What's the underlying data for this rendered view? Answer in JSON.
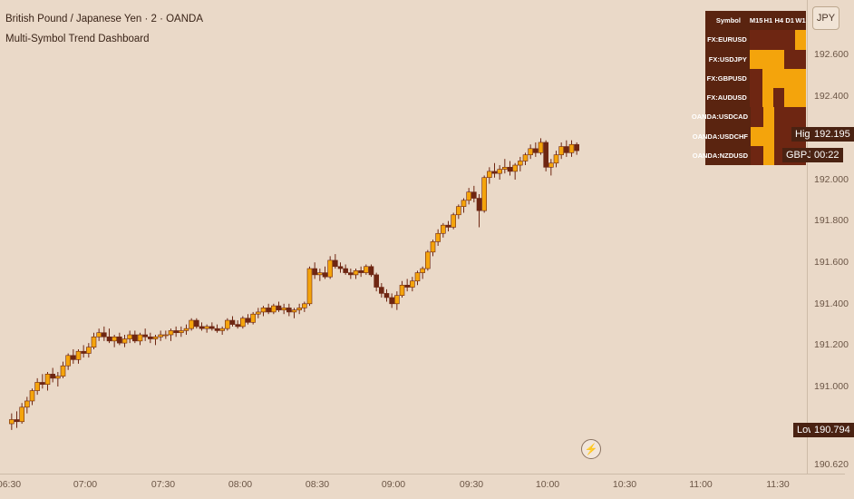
{
  "header": {
    "title": "British Pound / Japanese Yen · 2 · OANDA",
    "indicator": "Multi-Symbol Trend Dashboard"
  },
  "currency": "JPY",
  "price_axis": {
    "ticks": [
      "192.600",
      "192.400",
      "192.000",
      "191.800",
      "191.600",
      "191.400",
      "191.200",
      "191.000",
      "190.620"
    ]
  },
  "time_axis": {
    "ticks": [
      "06:30",
      "07:00",
      "07:30",
      "08:00",
      "08:30",
      "09:00",
      "09:30",
      "10:00",
      "10:30",
      "11:00",
      "11:30"
    ]
  },
  "labels": {
    "high_label": "High",
    "high_value": "192.195",
    "symbol_label": "GBPJPY",
    "timer": "00:22",
    "low_label": "Low",
    "low_value": "190.794"
  },
  "dashboard": {
    "header_symbol": "Symbol",
    "timeframes": [
      "M15",
      "H1",
      "H4",
      "D1",
      "W1"
    ],
    "rows": [
      {
        "symbol": "FX:EURUSD",
        "states": [
          "down",
          "down",
          "down",
          "down",
          "up"
        ]
      },
      {
        "symbol": "FX:USDJPY",
        "states": [
          "up",
          "up",
          "up",
          "down",
          "down"
        ]
      },
      {
        "symbol": "FX:GBPUSD",
        "states": [
          "down",
          "up",
          "up",
          "up",
          "up"
        ]
      },
      {
        "symbol": "FX:AUDUSD",
        "states": [
          "down",
          "up",
          "down",
          "up",
          "up"
        ]
      },
      {
        "symbol": "OANDA:USDCAD",
        "states": [
          "down",
          "up",
          "down",
          "down",
          "down"
        ]
      },
      {
        "symbol": "OANDA:USDCHF",
        "states": [
          "up",
          "up",
          "down",
          "down",
          "down"
        ]
      },
      {
        "symbol": "OANDA:NZDUSD",
        "states": [
          "down",
          "up",
          "down",
          "down",
          "down"
        ]
      }
    ]
  },
  "colors": {
    "background": "#ead9c8",
    "bull": "#f4a40c",
    "bear": "#6e2612",
    "wick": "#6e2612",
    "dashboard_bg": "#5a2410"
  },
  "chart_data": {
    "type": "candlestick",
    "symbol": "GBPJPY",
    "ylim": [
      190.6,
      192.78
    ],
    "x_range": [
      "06:30",
      "11:50"
    ],
    "ohlc": [
      {
        "t": "06:31",
        "o": 190.82,
        "h": 190.87,
        "l": 190.79,
        "c": 190.84
      },
      {
        "t": "06:33",
        "o": 190.84,
        "h": 190.88,
        "l": 190.8,
        "c": 190.83
      },
      {
        "t": "06:35",
        "o": 190.83,
        "h": 190.92,
        "l": 190.82,
        "c": 190.9
      },
      {
        "t": "06:37",
        "o": 190.9,
        "h": 190.95,
        "l": 190.87,
        "c": 190.93
      },
      {
        "t": "06:39",
        "o": 190.93,
        "h": 190.99,
        "l": 190.91,
        "c": 190.98
      },
      {
        "t": "06:41",
        "o": 190.98,
        "h": 191.04,
        "l": 190.96,
        "c": 191.02
      },
      {
        "t": "06:43",
        "o": 191.02,
        "h": 191.06,
        "l": 190.99,
        "c": 191.01
      },
      {
        "t": "06:45",
        "o": 191.01,
        "h": 191.07,
        "l": 190.98,
        "c": 191.06
      },
      {
        "t": "06:47",
        "o": 191.06,
        "h": 191.09,
        "l": 191.02,
        "c": 191.04
      },
      {
        "t": "06:49",
        "o": 191.04,
        "h": 191.07,
        "l": 191.0,
        "c": 191.05
      },
      {
        "t": "06:51",
        "o": 191.05,
        "h": 191.12,
        "l": 191.04,
        "c": 191.1
      },
      {
        "t": "06:53",
        "o": 191.1,
        "h": 191.16,
        "l": 191.08,
        "c": 191.15
      },
      {
        "t": "06:55",
        "o": 191.15,
        "h": 191.18,
        "l": 191.11,
        "c": 191.13
      },
      {
        "t": "06:57",
        "o": 191.13,
        "h": 191.18,
        "l": 191.11,
        "c": 191.17
      },
      {
        "t": "06:59",
        "o": 191.17,
        "h": 191.2,
        "l": 191.14,
        "c": 191.16
      },
      {
        "t": "07:01",
        "o": 191.16,
        "h": 191.21,
        "l": 191.14,
        "c": 191.19
      },
      {
        "t": "07:03",
        "o": 191.19,
        "h": 191.26,
        "l": 191.18,
        "c": 191.24
      },
      {
        "t": "07:05",
        "o": 191.24,
        "h": 191.28,
        "l": 191.22,
        "c": 191.26
      },
      {
        "t": "07:07",
        "o": 191.26,
        "h": 191.29,
        "l": 191.22,
        "c": 191.24
      },
      {
        "t": "07:09",
        "o": 191.24,
        "h": 191.28,
        "l": 191.21,
        "c": 191.22
      },
      {
        "t": "07:11",
        "o": 191.22,
        "h": 191.25,
        "l": 191.19,
        "c": 191.24
      },
      {
        "t": "07:13",
        "o": 191.24,
        "h": 191.26,
        "l": 191.2,
        "c": 191.21
      },
      {
        "t": "07:15",
        "o": 191.21,
        "h": 191.25,
        "l": 191.19,
        "c": 191.23
      },
      {
        "t": "07:17",
        "o": 191.23,
        "h": 191.27,
        "l": 191.21,
        "c": 191.25
      },
      {
        "t": "07:19",
        "o": 191.25,
        "h": 191.27,
        "l": 191.21,
        "c": 191.22
      },
      {
        "t": "07:21",
        "o": 191.22,
        "h": 191.26,
        "l": 191.2,
        "c": 191.25
      },
      {
        "t": "07:23",
        "o": 191.25,
        "h": 191.28,
        "l": 191.22,
        "c": 191.24
      },
      {
        "t": "07:25",
        "o": 191.24,
        "h": 191.26,
        "l": 191.21,
        "c": 191.23
      },
      {
        "t": "07:27",
        "o": 191.23,
        "h": 191.25,
        "l": 191.2,
        "c": 191.24
      },
      {
        "t": "07:29",
        "o": 191.24,
        "h": 191.27,
        "l": 191.22,
        "c": 191.25
      },
      {
        "t": "07:31",
        "o": 191.25,
        "h": 191.27,
        "l": 191.23,
        "c": 191.25
      },
      {
        "t": "07:33",
        "o": 191.25,
        "h": 191.28,
        "l": 191.22,
        "c": 191.27
      },
      {
        "t": "07:35",
        "o": 191.27,
        "h": 191.29,
        "l": 191.24,
        "c": 191.26
      },
      {
        "t": "07:37",
        "o": 191.26,
        "h": 191.29,
        "l": 191.24,
        "c": 191.27
      },
      {
        "t": "07:39",
        "o": 191.27,
        "h": 191.3,
        "l": 191.25,
        "c": 191.28
      },
      {
        "t": "07:41",
        "o": 191.28,
        "h": 191.33,
        "l": 191.27,
        "c": 191.32
      },
      {
        "t": "07:43",
        "o": 191.32,
        "h": 191.33,
        "l": 191.28,
        "c": 191.29
      },
      {
        "t": "07:45",
        "o": 191.29,
        "h": 191.31,
        "l": 191.27,
        "c": 191.28
      },
      {
        "t": "07:47",
        "o": 191.28,
        "h": 191.3,
        "l": 191.26,
        "c": 191.29
      },
      {
        "t": "07:49",
        "o": 191.29,
        "h": 191.31,
        "l": 191.27,
        "c": 191.28
      },
      {
        "t": "07:51",
        "o": 191.28,
        "h": 191.3,
        "l": 191.26,
        "c": 191.27
      },
      {
        "t": "07:53",
        "o": 191.27,
        "h": 191.29,
        "l": 191.25,
        "c": 191.28
      },
      {
        "t": "07:55",
        "o": 191.28,
        "h": 191.33,
        "l": 191.27,
        "c": 191.32
      },
      {
        "t": "07:57",
        "o": 191.32,
        "h": 191.34,
        "l": 191.29,
        "c": 191.3
      },
      {
        "t": "07:59",
        "o": 191.3,
        "h": 191.32,
        "l": 191.28,
        "c": 191.29
      },
      {
        "t": "08:01",
        "o": 191.29,
        "h": 191.34,
        "l": 191.28,
        "c": 191.33
      },
      {
        "t": "08:03",
        "o": 191.33,
        "h": 191.35,
        "l": 191.3,
        "c": 191.31
      },
      {
        "t": "08:05",
        "o": 191.31,
        "h": 191.36,
        "l": 191.3,
        "c": 191.35
      },
      {
        "t": "08:07",
        "o": 191.35,
        "h": 191.38,
        "l": 191.33,
        "c": 191.36
      },
      {
        "t": "08:09",
        "o": 191.36,
        "h": 191.39,
        "l": 191.34,
        "c": 191.38
      },
      {
        "t": "08:11",
        "o": 191.38,
        "h": 191.4,
        "l": 191.35,
        "c": 191.36
      },
      {
        "t": "08:13",
        "o": 191.36,
        "h": 191.4,
        "l": 191.35,
        "c": 191.39
      },
      {
        "t": "08:15",
        "o": 191.39,
        "h": 191.41,
        "l": 191.36,
        "c": 191.37
      },
      {
        "t": "08:17",
        "o": 191.37,
        "h": 191.4,
        "l": 191.35,
        "c": 191.38
      },
      {
        "t": "08:19",
        "o": 191.38,
        "h": 191.4,
        "l": 191.34,
        "c": 191.36
      },
      {
        "t": "08:21",
        "o": 191.36,
        "h": 191.38,
        "l": 191.33,
        "c": 191.37
      },
      {
        "t": "08:23",
        "o": 191.37,
        "h": 191.4,
        "l": 191.35,
        "c": 191.38
      },
      {
        "t": "08:25",
        "o": 191.38,
        "h": 191.41,
        "l": 191.36,
        "c": 191.4
      },
      {
        "t": "08:27",
        "o": 191.4,
        "h": 191.58,
        "l": 191.39,
        "c": 191.57
      },
      {
        "t": "08:29",
        "o": 191.57,
        "h": 191.6,
        "l": 191.52,
        "c": 191.54
      },
      {
        "t": "08:31",
        "o": 191.54,
        "h": 191.57,
        "l": 191.51,
        "c": 191.55
      },
      {
        "t": "08:33",
        "o": 191.55,
        "h": 191.58,
        "l": 191.52,
        "c": 191.53
      },
      {
        "t": "08:35",
        "o": 191.53,
        "h": 191.63,
        "l": 191.52,
        "c": 191.61
      },
      {
        "t": "08:37",
        "o": 191.61,
        "h": 191.64,
        "l": 191.57,
        "c": 191.58
      },
      {
        "t": "08:39",
        "o": 191.58,
        "h": 191.6,
        "l": 191.55,
        "c": 191.57
      },
      {
        "t": "08:41",
        "o": 191.57,
        "h": 191.59,
        "l": 191.54,
        "c": 191.55
      },
      {
        "t": "08:43",
        "o": 191.55,
        "h": 191.57,
        "l": 191.52,
        "c": 191.54
      },
      {
        "t": "08:45",
        "o": 191.54,
        "h": 191.57,
        "l": 191.52,
        "c": 191.56
      },
      {
        "t": "08:47",
        "o": 191.56,
        "h": 191.58,
        "l": 191.53,
        "c": 191.55
      },
      {
        "t": "08:49",
        "o": 191.55,
        "h": 191.59,
        "l": 191.54,
        "c": 191.58
      },
      {
        "t": "08:51",
        "o": 191.58,
        "h": 191.59,
        "l": 191.53,
        "c": 191.54
      },
      {
        "t": "08:53",
        "o": 191.54,
        "h": 191.55,
        "l": 191.46,
        "c": 191.48
      },
      {
        "t": "08:55",
        "o": 191.48,
        "h": 191.5,
        "l": 191.43,
        "c": 191.45
      },
      {
        "t": "08:57",
        "o": 191.45,
        "h": 191.47,
        "l": 191.41,
        "c": 191.43
      },
      {
        "t": "08:59",
        "o": 191.43,
        "h": 191.45,
        "l": 191.38,
        "c": 191.4
      },
      {
        "t": "09:01",
        "o": 191.4,
        "h": 191.46,
        "l": 191.37,
        "c": 191.44
      },
      {
        "t": "09:03",
        "o": 191.44,
        "h": 191.51,
        "l": 191.43,
        "c": 191.49
      },
      {
        "t": "09:05",
        "o": 191.49,
        "h": 191.52,
        "l": 191.46,
        "c": 191.48
      },
      {
        "t": "09:07",
        "o": 191.48,
        "h": 191.53,
        "l": 191.46,
        "c": 191.51
      },
      {
        "t": "09:09",
        "o": 191.51,
        "h": 191.56,
        "l": 191.49,
        "c": 191.55
      },
      {
        "t": "09:11",
        "o": 191.55,
        "h": 191.58,
        "l": 191.52,
        "c": 191.57
      },
      {
        "t": "09:13",
        "o": 191.57,
        "h": 191.66,
        "l": 191.56,
        "c": 191.65
      },
      {
        "t": "09:15",
        "o": 191.65,
        "h": 191.71,
        "l": 191.63,
        "c": 191.7
      },
      {
        "t": "09:17",
        "o": 191.7,
        "h": 191.76,
        "l": 191.68,
        "c": 191.74
      },
      {
        "t": "09:19",
        "o": 191.74,
        "h": 191.79,
        "l": 191.72,
        "c": 191.78
      },
      {
        "t": "09:21",
        "o": 191.78,
        "h": 191.8,
        "l": 191.75,
        "c": 191.77
      },
      {
        "t": "09:23",
        "o": 191.77,
        "h": 191.84,
        "l": 191.76,
        "c": 191.83
      },
      {
        "t": "09:25",
        "o": 191.83,
        "h": 191.88,
        "l": 191.81,
        "c": 191.87
      },
      {
        "t": "09:27",
        "o": 191.87,
        "h": 191.91,
        "l": 191.84,
        "c": 191.9
      },
      {
        "t": "09:29",
        "o": 191.9,
        "h": 191.96,
        "l": 191.88,
        "c": 191.94
      },
      {
        "t": "09:31",
        "o": 191.94,
        "h": 191.97,
        "l": 191.89,
        "c": 191.91
      },
      {
        "t": "09:33",
        "o": 191.91,
        "h": 191.93,
        "l": 191.77,
        "c": 191.85
      },
      {
        "t": "09:35",
        "o": 191.85,
        "h": 192.02,
        "l": 191.84,
        "c": 192.01
      },
      {
        "t": "09:37",
        "o": 192.01,
        "h": 192.06,
        "l": 191.98,
        "c": 192.04
      },
      {
        "t": "09:39",
        "o": 192.04,
        "h": 192.08,
        "l": 192.01,
        "c": 192.03
      },
      {
        "t": "09:41",
        "o": 192.03,
        "h": 192.07,
        "l": 192.0,
        "c": 192.05
      },
      {
        "t": "09:43",
        "o": 192.05,
        "h": 192.1,
        "l": 192.03,
        "c": 192.06
      },
      {
        "t": "09:45",
        "o": 192.06,
        "h": 192.09,
        "l": 192.02,
        "c": 192.04
      },
      {
        "t": "09:47",
        "o": 192.04,
        "h": 192.08,
        "l": 192.0,
        "c": 192.07
      },
      {
        "t": "09:49",
        "o": 192.07,
        "h": 192.11,
        "l": 192.04,
        "c": 192.09
      },
      {
        "t": "09:51",
        "o": 192.09,
        "h": 192.13,
        "l": 192.07,
        "c": 192.12
      },
      {
        "t": "09:53",
        "o": 192.12,
        "h": 192.17,
        "l": 192.1,
        "c": 192.15
      },
      {
        "t": "09:55",
        "o": 192.15,
        "h": 192.18,
        "l": 192.11,
        "c": 192.13
      },
      {
        "t": "09:57",
        "o": 192.13,
        "h": 192.2,
        "l": 192.12,
        "c": 192.18
      },
      {
        "t": "09:59",
        "o": 192.18,
        "h": 192.19,
        "l": 192.04,
        "c": 192.06
      },
      {
        "t": "10:01",
        "o": 192.06,
        "h": 192.1,
        "l": 192.02,
        "c": 192.08
      },
      {
        "t": "10:03",
        "o": 192.08,
        "h": 192.14,
        "l": 192.06,
        "c": 192.12
      },
      {
        "t": "10:05",
        "o": 192.12,
        "h": 192.18,
        "l": 192.1,
        "c": 192.16
      },
      {
        "t": "10:07",
        "o": 192.16,
        "h": 192.19,
        "l": 192.11,
        "c": 192.13
      },
      {
        "t": "10:09",
        "o": 192.13,
        "h": 192.19,
        "l": 192.11,
        "c": 192.17
      },
      {
        "t": "10:11",
        "o": 192.17,
        "h": 192.18,
        "l": 192.12,
        "c": 192.14
      }
    ]
  }
}
